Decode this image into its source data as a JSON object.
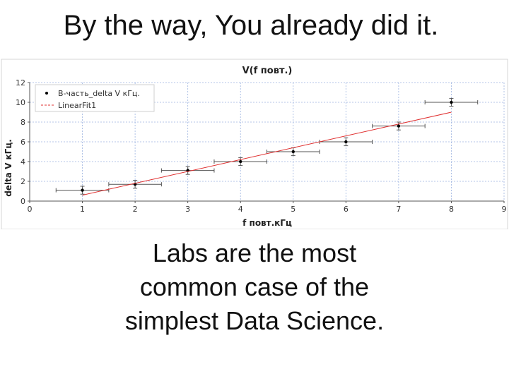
{
  "slide": {
    "title": "By the way, You already did it.",
    "caption": [
      "Labs are the most",
      "common case of the",
      "simplest Data Science."
    ]
  },
  "chart_data": {
    "type": "scatter",
    "title": "V(f повт.)",
    "xlabel": "f повт.кГц",
    "ylabel": "delta V кГц.",
    "xlim": [
      0,
      9
    ],
    "ylim": [
      0,
      12
    ],
    "xticks": [
      0,
      1,
      2,
      3,
      4,
      5,
      6,
      7,
      8,
      9
    ],
    "yticks": [
      0,
      2,
      4,
      6,
      8,
      10,
      12
    ],
    "grid": true,
    "legend_position": "top-left",
    "series": [
      {
        "name": "B-часть_delta V кГц.",
        "kind": "points_with_errorbars",
        "color": "#000000",
        "x": [
          1,
          2,
          3,
          4,
          5,
          6,
          7,
          8
        ],
        "y": [
          1.1,
          1.7,
          3.1,
          4.0,
          5.0,
          6.0,
          7.6,
          10.0
        ],
        "x_err": [
          0.5,
          0.5,
          0.5,
          0.5,
          0.5,
          0.5,
          0.5,
          0.5
        ],
        "y_err": [
          0.4,
          0.4,
          0.4,
          0.4,
          0.4,
          0.4,
          0.4,
          0.4
        ]
      },
      {
        "name": "LinearFit1",
        "kind": "line",
        "color": "#e03030",
        "x": [
          1,
          8
        ],
        "y": [
          0.6,
          9.0
        ]
      }
    ]
  }
}
